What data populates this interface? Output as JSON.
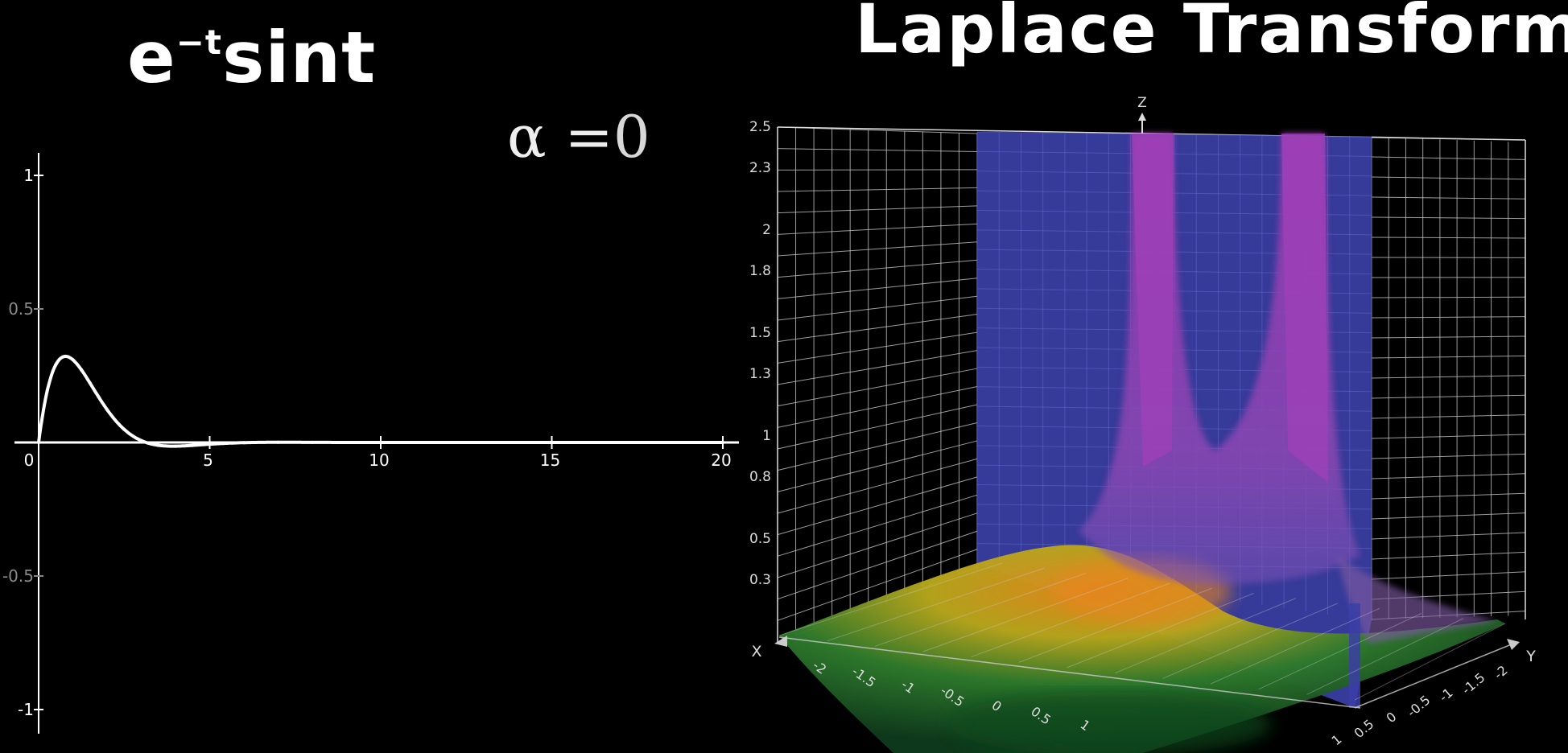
{
  "left_title": {
    "main": "e",
    "superscript": "−t",
    "rest": "sint"
  },
  "right_title": "Laplace Transform",
  "alpha": {
    "symbol": "α",
    "equals": "=",
    "value": "0"
  },
  "chart_data": [
    {
      "type": "line",
      "function": "e^(-t) sin(t)",
      "x": [
        0,
        0.25,
        0.5,
        0.75,
        1,
        1.25,
        1.5,
        1.75,
        2,
        2.5,
        3,
        3.5,
        4,
        4.5,
        5,
        6,
        7,
        8,
        10,
        12,
        15,
        20
      ],
      "y": [
        0,
        0.193,
        0.291,
        0.322,
        0.31,
        0.272,
        0.223,
        0.171,
        0.123,
        0.049,
        0.007,
        -0.011,
        -0.014,
        -0.011,
        -0.006,
        -0.0007,
        0.0006,
        0.0003,
        0,
        0,
        0,
        0
      ],
      "xlim": [
        0,
        20
      ],
      "ylim": [
        -1,
        1
      ],
      "x_ticks": [
        "0",
        "5",
        "10",
        "15",
        "20"
      ],
      "y_ticks": [
        "1",
        "0.5",
        "-0.5",
        "-1"
      ],
      "line_color": "#ffffff"
    },
    {
      "type": "surface",
      "function": "|F(s)|, F(s) = 1/((s+1)^2+1)",
      "axes": {
        "x": "X",
        "y": "Y",
        "z": "Z"
      },
      "z_ticks": [
        "2.5",
        "2.3",
        "2",
        "1.8",
        "1.5",
        "1.3",
        "1",
        "0.8",
        "0.5",
        "0.3"
      ],
      "x_ticks": [
        "-2",
        "-1.5",
        "-1",
        "-0.5",
        "0",
        "0.5",
        "1"
      ],
      "y_ticks": [
        "-2",
        "-1.5",
        "-1",
        "-0.5",
        "0",
        "0.5",
        "1"
      ],
      "zlim": [
        0,
        2.5
      ],
      "poles": [
        [
          -1,
          1
        ],
        [
          -1,
          -1
        ]
      ],
      "plane_color": "#3b3fa6",
      "spike_color": "#8e3aa8",
      "surface_colors": [
        "#0f5a1e",
        "#9aa21e",
        "#e89a1c",
        "#b04a64"
      ],
      "grid_color": "#cfcfcf"
    }
  ]
}
